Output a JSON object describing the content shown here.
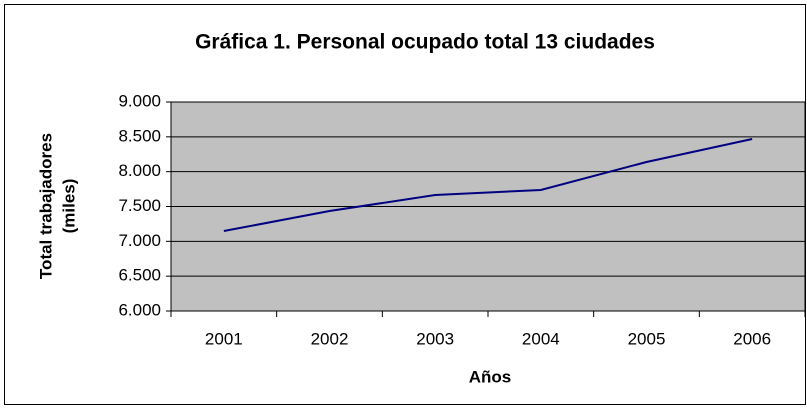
{
  "chart_data": {
    "type": "line",
    "title": "Gráfica 1. Personal ocupado total 13 ciudades",
    "xlabel": "Años",
    "ylabel": [
      "Total trabajadores",
      "(miles)"
    ],
    "categories": [
      "2001",
      "2002",
      "2003",
      "2004",
      "2005",
      "2006"
    ],
    "values": [
      7148,
      7435,
      7665,
      7737,
      8139,
      8469
    ],
    "color": "#000080",
    "ylim": [
      6000,
      9000
    ],
    "yticks": [
      {
        "value": 6000,
        "label": "6.000"
      },
      {
        "value": 6500,
        "label": "6.500"
      },
      {
        "value": 7000,
        "label": "7.000"
      },
      {
        "value": 7500,
        "label": "7.500"
      },
      {
        "value": 8000,
        "label": "8.000"
      },
      {
        "value": 8500,
        "label": "8.500"
      },
      {
        "value": 9000,
        "label": "9.000"
      }
    ],
    "grid": true,
    "plot_background": "#c0c0c0"
  }
}
